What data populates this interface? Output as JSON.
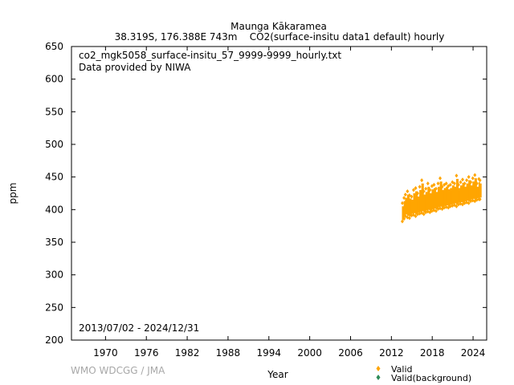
{
  "chart_data": {
    "type": "scatter",
    "title": "Maunga Kākaramea",
    "subtitle": "38.319S, 176.388E 743m    CO2(surface-insitu data1 default) hourly",
    "file_label": "co2_mgk5058_surface-insitu_57_9999-9999_hourly.txt",
    "provider_label": "Data provided by NIWA",
    "period_label": "2013/07/02 - 2024/12/31",
    "xlabel": "Year",
    "ylabel": "ppm",
    "credit": "WMO WDCGG / JMA",
    "xlim": [
      1965,
      2026
    ],
    "ylim": [
      200,
      650
    ],
    "x_ticks": [
      1970,
      1976,
      1982,
      1988,
      1994,
      2000,
      2006,
      2012,
      2018,
      2024
    ],
    "y_ticks": [
      200,
      250,
      300,
      350,
      400,
      450,
      500,
      550,
      600,
      650
    ],
    "grid": false,
    "legend_position": "bottom-right",
    "series": [
      {
        "name": "Valid",
        "color": "#ffa500",
        "marker": "diamond",
        "x": [
          2013.55,
          2013.8,
          2014.0,
          2014.3,
          2014.6,
          2014.9,
          2015.2,
          2015.5,
          2015.8,
          2016.1,
          2016.4,
          2016.7,
          2017.0,
          2017.3,
          2017.6,
          2017.9,
          2018.2,
          2018.5,
          2018.8,
          2019.1,
          2019.4,
          2019.7,
          2020.0,
          2020.3,
          2020.6,
          2020.9,
          2021.2,
          2021.5,
          2021.8,
          2022.1,
          2022.4,
          2022.7,
          2023.0,
          2023.3,
          2023.6,
          2023.9,
          2024.2,
          2024.5,
          2024.8,
          2024.95
        ],
        "y_low": [
          382,
          386,
          390,
          388,
          387,
          391,
          392,
          390,
          393,
          394,
          395,
          393,
          396,
          397,
          396,
          398,
          399,
          398,
          401,
          402,
          401,
          403,
          404,
          403,
          405,
          406,
          407,
          405,
          408,
          409,
          408,
          410,
          411,
          410,
          413,
          414,
          413,
          415,
          416,
          416
        ],
        "y_high": [
          410,
          418,
          423,
          428,
          422,
          420,
          430,
          433,
          425,
          435,
          445,
          428,
          432,
          440,
          430,
          436,
          438,
          432,
          440,
          448,
          435,
          438,
          440,
          436,
          438,
          442,
          440,
          452,
          438,
          442,
          446,
          440,
          445,
          450,
          442,
          448,
          453,
          440,
          447,
          445
        ]
      },
      {
        "name": "Valid(background)",
        "color": "#2e8b57",
        "marker": "diamond",
        "x": [],
        "y_low": [],
        "y_high": []
      }
    ]
  }
}
